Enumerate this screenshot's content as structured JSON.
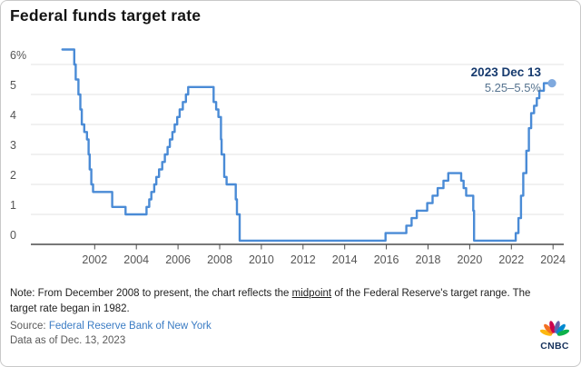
{
  "title": "Federal funds target rate",
  "annotation": {
    "date": "2023 Dec 13",
    "range": "5.25–5.5%"
  },
  "footer": {
    "note_prefix": "Note: From December 2008 to present, the chart reflects the ",
    "note_underline": "midpoint",
    "note_suffix": " of the Federal Reserve's target range. The target rate began in 1982.",
    "source_label": "Source: ",
    "source_link": "Federal Reserve Bank of New York",
    "data_as_of": "Data as of Dec. 13, 2023",
    "logo_text": "CNBC"
  },
  "colors": {
    "line": "#4a8bd6",
    "end_dot": "#7fa9de",
    "gridline": "#e3e3e3",
    "axis": "#4c4c4c",
    "tick_label": "#555555",
    "annotation_date": "#163a6e",
    "annotation_range": "#56738f",
    "link": "#3b7cc4",
    "peacock": [
      "#FCB711",
      "#F37021",
      "#CC004C",
      "#6460AA",
      "#0089D0",
      "#0DB14B"
    ]
  },
  "chart_data": {
    "type": "line",
    "step": "after",
    "title": "Federal funds target rate",
    "ylabel": "percent",
    "xlim": [
      2000.2,
      2024.35
    ],
    "ylim": [
      0,
      6.6
    ],
    "grid": "horizontal-only",
    "legend": "none",
    "x_axis": {
      "ticks": [
        2002,
        2004,
        2006,
        2008,
        2010,
        2012,
        2014,
        2016,
        2018,
        2020,
        2022,
        2024
      ]
    },
    "y_axis": {
      "ticks": [
        {
          "value": 6,
          "label": "6%"
        },
        {
          "value": 5,
          "label": "5"
        },
        {
          "value": 4,
          "label": "4"
        },
        {
          "value": 3,
          "label": "3"
        },
        {
          "value": 2,
          "label": "2"
        },
        {
          "value": 1,
          "label": "1"
        },
        {
          "value": 0,
          "label": "0"
        }
      ]
    },
    "series": [
      {
        "name": "Federal funds target rate (midpoint of target range since Dec 2008)",
        "points": [
          [
            2000.45,
            6.5
          ],
          [
            2001.02,
            6.0
          ],
          [
            2001.09,
            5.5
          ],
          [
            2001.22,
            5.0
          ],
          [
            2001.31,
            4.5
          ],
          [
            2001.38,
            4.0
          ],
          [
            2001.5,
            3.75
          ],
          [
            2001.63,
            3.5
          ],
          [
            2001.71,
            3.0
          ],
          [
            2001.76,
            2.5
          ],
          [
            2001.84,
            2.0
          ],
          [
            2001.92,
            1.75
          ],
          [
            2002.84,
            1.25
          ],
          [
            2003.48,
            1.0
          ],
          [
            2004.49,
            1.25
          ],
          [
            2004.62,
            1.5
          ],
          [
            2004.72,
            1.75
          ],
          [
            2004.86,
            2.0
          ],
          [
            2004.96,
            2.25
          ],
          [
            2005.09,
            2.5
          ],
          [
            2005.24,
            2.75
          ],
          [
            2005.37,
            3.0
          ],
          [
            2005.5,
            3.25
          ],
          [
            2005.61,
            3.5
          ],
          [
            2005.73,
            3.75
          ],
          [
            2005.84,
            4.0
          ],
          [
            2005.96,
            4.25
          ],
          [
            2006.08,
            4.5
          ],
          [
            2006.23,
            4.75
          ],
          [
            2006.38,
            5.0
          ],
          [
            2006.49,
            5.25
          ],
          [
            2007.71,
            4.75
          ],
          [
            2007.83,
            4.5
          ],
          [
            2007.94,
            4.25
          ],
          [
            2008.06,
            3.5
          ],
          [
            2008.09,
            3.0
          ],
          [
            2008.22,
            2.25
          ],
          [
            2008.33,
            2.0
          ],
          [
            2008.77,
            1.5
          ],
          [
            2008.83,
            1.0
          ],
          [
            2008.96,
            0.125
          ],
          [
            2015.96,
            0.375
          ],
          [
            2016.96,
            0.625
          ],
          [
            2017.21,
            0.875
          ],
          [
            2017.46,
            1.125
          ],
          [
            2017.96,
            1.375
          ],
          [
            2018.22,
            1.625
          ],
          [
            2018.46,
            1.875
          ],
          [
            2018.74,
            2.125
          ],
          [
            2018.97,
            2.375
          ],
          [
            2019.59,
            2.125
          ],
          [
            2019.71,
            1.875
          ],
          [
            2019.83,
            1.625
          ],
          [
            2020.17,
            1.125
          ],
          [
            2020.21,
            0.125
          ],
          [
            2022.21,
            0.375
          ],
          [
            2022.34,
            0.875
          ],
          [
            2022.46,
            1.625
          ],
          [
            2022.57,
            2.375
          ],
          [
            2022.72,
            3.125
          ],
          [
            2022.84,
            3.875
          ],
          [
            2022.95,
            4.375
          ],
          [
            2023.09,
            4.625
          ],
          [
            2023.22,
            4.875
          ],
          [
            2023.34,
            5.125
          ],
          [
            2023.56,
            5.375
          ]
        ]
      }
    ],
    "end_point": {
      "x": 2023.95,
      "y": 5.375,
      "label_date": "2023 Dec 13",
      "label_value": "5.25–5.5%"
    }
  }
}
